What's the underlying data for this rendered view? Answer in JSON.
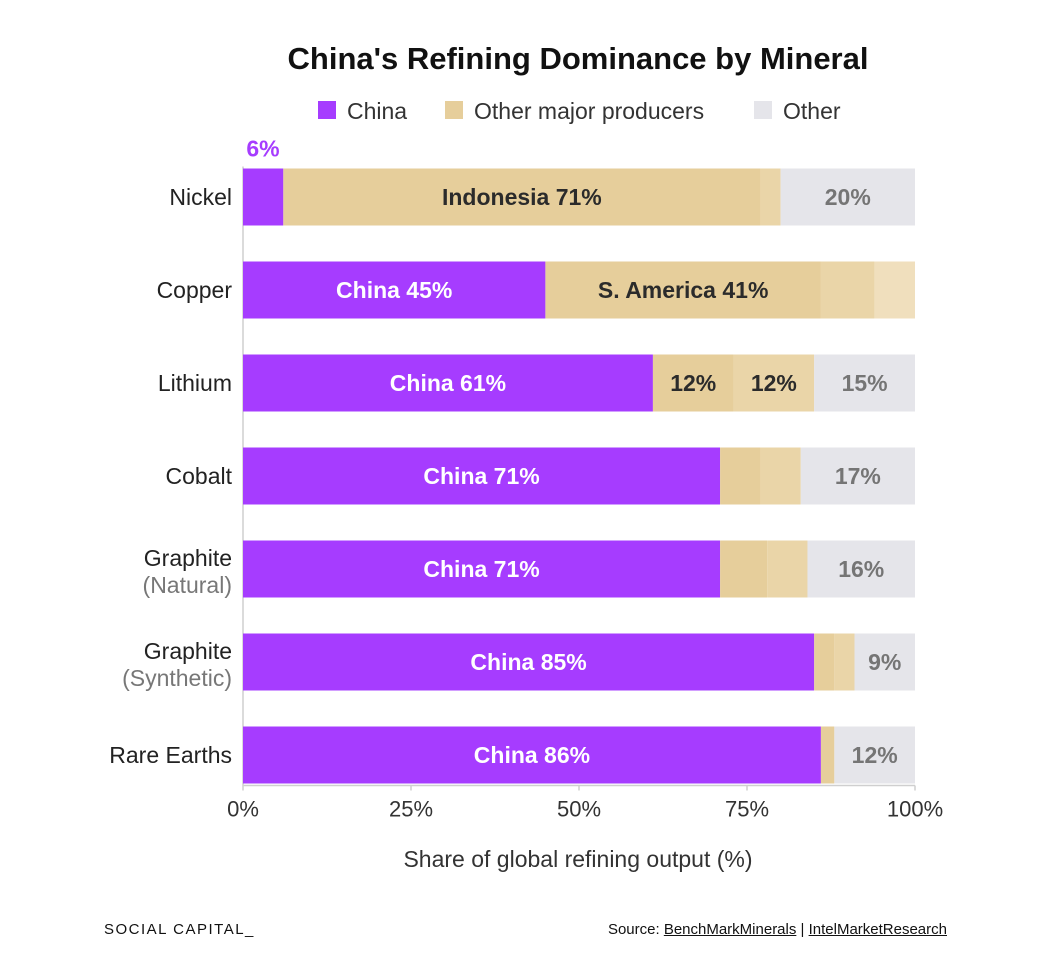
{
  "chart_data": {
    "type": "bar",
    "orientation": "horizontal",
    "stacked": true,
    "title": "China's Refining Dominance by Mineral",
    "xlabel": "Share of global refining output (%)",
    "ylabel": "",
    "xlim": [
      0,
      100
    ],
    "x_ticks": [
      "0%",
      "25%",
      "50%",
      "75%",
      "100%"
    ],
    "legend": [
      {
        "name": "China",
        "color": "#a63cff"
      },
      {
        "name": "Other major producers",
        "color": "#e6ce9b"
      },
      {
        "name": "Other",
        "color": "#e5e5ea"
      }
    ],
    "legend_position": "top-center",
    "colors": {
      "china": "#a63cff",
      "major_1": "#e6ce9b",
      "major_2": "#ead5a8",
      "major_3": "#f0dfbd",
      "other": "#e5e5ea",
      "label_on_purple": "#ffffff",
      "label_on_gold": "#2b2b2b",
      "label_on_gray": "#757575",
      "outside_label": "#a63cff"
    },
    "categories": [
      {
        "name": "Nickel",
        "sub": "",
        "segments": [
          {
            "group": "china",
            "value": 6,
            "label": "6%",
            "label_position": "outside-top"
          },
          {
            "group": "major",
            "value": 71,
            "label": "Indonesia 71%"
          },
          {
            "group": "major",
            "value": 3,
            "label": ""
          },
          {
            "group": "other",
            "value": 20,
            "label": "20%"
          }
        ]
      },
      {
        "name": "Copper",
        "sub": "",
        "segments": [
          {
            "group": "china",
            "value": 45,
            "label": "China 45%"
          },
          {
            "group": "major",
            "value": 41,
            "label": "S. America 41%"
          },
          {
            "group": "major",
            "value": 8,
            "label": ""
          },
          {
            "group": "major",
            "value": 6,
            "label": ""
          }
        ]
      },
      {
        "name": "Lithium",
        "sub": "",
        "segments": [
          {
            "group": "china",
            "value": 61,
            "label": "China 61%"
          },
          {
            "group": "major",
            "value": 12,
            "label": "12%"
          },
          {
            "group": "major",
            "value": 12,
            "label": "12%"
          },
          {
            "group": "other",
            "value": 15,
            "label": "15%"
          }
        ]
      },
      {
        "name": "Cobalt",
        "sub": "",
        "segments": [
          {
            "group": "china",
            "value": 71,
            "label": "China 71%"
          },
          {
            "group": "major",
            "value": 6,
            "label": ""
          },
          {
            "group": "major",
            "value": 6,
            "label": ""
          },
          {
            "group": "other",
            "value": 17,
            "label": "17%"
          }
        ]
      },
      {
        "name": "Graphite",
        "sub": "(Natural)",
        "segments": [
          {
            "group": "china",
            "value": 71,
            "label": "China 71%"
          },
          {
            "group": "major",
            "value": 7,
            "label": ""
          },
          {
            "group": "major",
            "value": 6,
            "label": ""
          },
          {
            "group": "other",
            "value": 16,
            "label": "16%"
          }
        ]
      },
      {
        "name": "Graphite",
        "sub": "(Synthetic)",
        "segments": [
          {
            "group": "china",
            "value": 85,
            "label": "China 85%"
          },
          {
            "group": "major",
            "value": 3,
            "label": ""
          },
          {
            "group": "major",
            "value": 3,
            "label": ""
          },
          {
            "group": "other",
            "value": 9,
            "label": "9%"
          }
        ]
      },
      {
        "name": "Rare Earths",
        "sub": "",
        "segments": [
          {
            "group": "china",
            "value": 86,
            "label": "China 86%"
          },
          {
            "group": "major",
            "value": 2,
            "label": ""
          },
          {
            "group": "other",
            "value": 12,
            "label": "12%"
          }
        ]
      }
    ]
  },
  "footer": {
    "brand": "SOCIAL CAPITAL_",
    "source_prefix": "Source: ",
    "source_link_1": "BenchMarkMinerals",
    "source_separator": " | ",
    "source_link_2": "IntelMarketResearch"
  }
}
